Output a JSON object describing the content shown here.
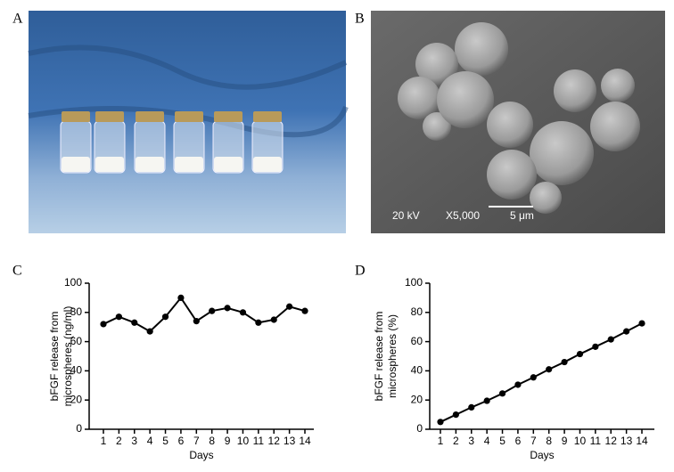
{
  "panels": {
    "a": "A",
    "b": "B",
    "c": "C",
    "d": "D"
  },
  "sem_labels": {
    "voltage": "20 kV",
    "magnification": "X5,000",
    "scale": "5 μm"
  },
  "chart_data": [
    {
      "type": "line",
      "ylabel": [
        "bFGF release from",
        "microspheres (ng/ml)"
      ],
      "xlabel": "Days",
      "categories": [
        "1",
        "2",
        "3",
        "4",
        "5",
        "6",
        "7",
        "8",
        "9",
        "10",
        "11",
        "12",
        "13",
        "14"
      ],
      "values": [
        72,
        77,
        73,
        67,
        77,
        90,
        74,
        81,
        83,
        80,
        73,
        75,
        84,
        81
      ],
      "color": "#000000",
      "ylim": [
        0,
        100
      ],
      "yticks": [
        0,
        20,
        40,
        60,
        80,
        100
      ]
    },
    {
      "type": "line",
      "ylabel": [
        "bFGF release from",
        "microspheres (%)"
      ],
      "xlabel": "Days",
      "categories": [
        "1",
        "2",
        "3",
        "4",
        "5",
        "6",
        "7",
        "8",
        "9",
        "10",
        "11",
        "12",
        "13",
        "14"
      ],
      "values": [
        5,
        10,
        15,
        19.5,
        24.5,
        30.5,
        35.5,
        41,
        46,
        51.5,
        56.5,
        61.5,
        67,
        72.5
      ],
      "color": "#000000",
      "ylim": [
        0,
        100
      ],
      "yticks": [
        0,
        20,
        40,
        60,
        80,
        100
      ]
    }
  ]
}
